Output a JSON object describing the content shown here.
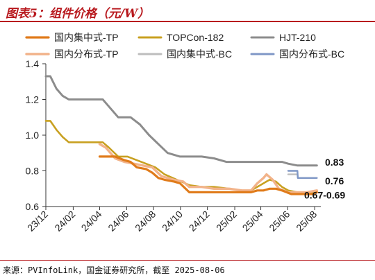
{
  "header": {
    "title": "图表5：组件价格（元/W）"
  },
  "footer": {
    "source": "来源：PVInfoLink，国金证券研究所，截至 2025-08-06"
  },
  "chart_data": {
    "type": "line",
    "title": "图表5：组件价格（元/W）",
    "xlabel": "",
    "ylabel": "",
    "ylim": [
      0.6,
      1.4
    ],
    "yticks": [
      "0.6",
      "0.8",
      "1.0",
      "1.2",
      "1.4"
    ],
    "xlim": [
      "2023-12-01",
      "2025-08-15"
    ],
    "xtick_labels": [
      "23/12",
      "24/02",
      "24/04",
      "24/06",
      "24/08",
      "24/10",
      "24/12",
      "25/02",
      "25/04",
      "25/06",
      "25/08"
    ],
    "xtick_dates": [
      "2023-12-01",
      "2024-02-01",
      "2024-04-01",
      "2024-06-01",
      "2024-08-01",
      "2024-10-01",
      "2024-12-01",
      "2025-02-01",
      "2025-04-01",
      "2025-06-01",
      "2025-08-01"
    ],
    "grid": false,
    "legend_position": "top",
    "series": [
      {
        "name": "国内集中式-TP",
        "color": "#e07b1a",
        "width": 3.2,
        "x": [
          "2024-04-01",
          "2024-04-08",
          "2024-05-06",
          "2024-05-27",
          "2024-06-10",
          "2024-06-24",
          "2024-07-15",
          "2024-07-29",
          "2024-08-12",
          "2024-08-26",
          "2024-09-16",
          "2024-09-30",
          "2024-10-21",
          "2024-11-11",
          "2024-12-16",
          "2025-01-20",
          "2025-02-24",
          "2025-03-10",
          "2025-03-24",
          "2025-04-07",
          "2025-04-21",
          "2025-05-05",
          "2025-05-19",
          "2025-06-09",
          "2025-06-23",
          "2025-07-14",
          "2025-07-28",
          "2025-08-06"
        ],
        "y": [
          0.88,
          0.88,
          0.88,
          0.86,
          0.85,
          0.82,
          0.81,
          0.79,
          0.76,
          0.75,
          0.74,
          0.73,
          0.68,
          0.68,
          0.68,
          0.68,
          0.68,
          0.68,
          0.69,
          0.69,
          0.7,
          0.7,
          0.69,
          0.67,
          0.67,
          0.67,
          0.67,
          0.68
        ]
      },
      {
        "name": "TOPCon-182",
        "color": "#c8a020",
        "width": 2.6,
        "x": [
          "2023-12-01",
          "2023-12-11",
          "2023-12-25",
          "2024-01-08",
          "2024-01-22",
          "2024-02-12",
          "2024-03-11",
          "2024-04-08",
          "2024-04-22",
          "2024-05-13",
          "2024-06-03",
          "2024-06-24",
          "2024-07-15",
          "2024-08-05",
          "2024-08-26",
          "2024-09-23",
          "2024-10-21",
          "2024-11-18",
          "2024-12-16",
          "2025-01-20",
          "2025-02-17",
          "2025-03-10",
          "2025-03-31",
          "2025-04-14",
          "2025-04-21",
          "2025-05-05",
          "2025-05-19",
          "2025-06-02",
          "2025-06-23",
          "2025-07-14",
          "2025-08-06"
        ],
        "y": [
          1.08,
          1.08,
          1.03,
          0.99,
          0.96,
          0.96,
          0.96,
          0.96,
          0.93,
          0.88,
          0.88,
          0.86,
          0.84,
          0.82,
          0.78,
          0.75,
          0.72,
          0.71,
          0.71,
          0.7,
          0.69,
          0.69,
          0.72,
          0.74,
          0.75,
          0.74,
          0.71,
          0.69,
          0.68,
          0.68,
          0.68
        ]
      },
      {
        "name": "HJT-210",
        "color": "#8c8c8c",
        "width": 3.0,
        "x": [
          "2023-12-01",
          "2023-12-11",
          "2023-12-25",
          "2024-01-08",
          "2024-01-22",
          "2024-02-12",
          "2024-03-11",
          "2024-04-08",
          "2024-04-22",
          "2024-05-13",
          "2024-06-10",
          "2024-07-01",
          "2024-07-22",
          "2024-08-12",
          "2024-09-02",
          "2024-09-30",
          "2024-10-21",
          "2024-11-18",
          "2024-12-16",
          "2025-01-13",
          "2025-02-10",
          "2025-03-10",
          "2025-04-07",
          "2025-05-05",
          "2025-05-19",
          "2025-06-02",
          "2025-06-23",
          "2025-07-14",
          "2025-08-06"
        ],
        "y": [
          1.33,
          1.33,
          1.26,
          1.22,
          1.2,
          1.2,
          1.2,
          1.2,
          1.16,
          1.1,
          1.1,
          1.06,
          1.0,
          0.95,
          0.9,
          0.88,
          0.88,
          0.88,
          0.87,
          0.85,
          0.85,
          0.85,
          0.85,
          0.85,
          0.85,
          0.84,
          0.83,
          0.83,
          0.83
        ]
      },
      {
        "name": "国内分布式-TP",
        "color": "#f2b38a",
        "width": 3.4,
        "x": [
          "2024-04-01",
          "2024-04-15",
          "2024-05-06",
          "2024-05-27",
          "2024-06-17",
          "2024-07-08",
          "2024-07-29",
          "2024-08-19",
          "2024-09-16",
          "2024-10-07",
          "2024-10-21",
          "2024-11-18",
          "2024-12-16",
          "2025-01-20",
          "2025-02-17",
          "2025-03-10",
          "2025-03-24",
          "2025-04-07",
          "2025-04-14",
          "2025-04-28",
          "2025-05-12",
          "2025-06-02",
          "2025-06-23",
          "2025-07-14",
          "2025-08-06"
        ],
        "y": [
          0.95,
          0.93,
          0.87,
          0.85,
          0.84,
          0.83,
          0.82,
          0.77,
          0.75,
          0.74,
          0.71,
          0.71,
          0.7,
          0.7,
          0.69,
          0.69,
          0.73,
          0.76,
          0.78,
          0.75,
          0.7,
          0.68,
          0.68,
          0.68,
          0.69
        ]
      },
      {
        "name": "国内集中式-BC",
        "color": "#bdbdbd",
        "width": 2.4,
        "x": [
          "2025-06-02",
          "2025-06-23",
          "2025-06-24",
          "2025-07-14",
          "2025-08-06"
        ],
        "y": [
          0.78,
          0.78,
          0.76,
          0.76,
          0.76
        ]
      },
      {
        "name": "国内分布式-BC",
        "color": "#7f97c6",
        "width": 2.4,
        "x": [
          "2025-06-02",
          "2025-06-23",
          "2025-06-24",
          "2025-07-14",
          "2025-08-06"
        ],
        "y": [
          0.8,
          0.8,
          0.76,
          0.76,
          0.76
        ]
      }
    ],
    "annotations": [
      {
        "text": "0.83",
        "y": 0.83
      },
      {
        "text": "0.76",
        "y": 0.76
      },
      {
        "text": "0.67-0.69",
        "y": 0.68
      }
    ]
  }
}
